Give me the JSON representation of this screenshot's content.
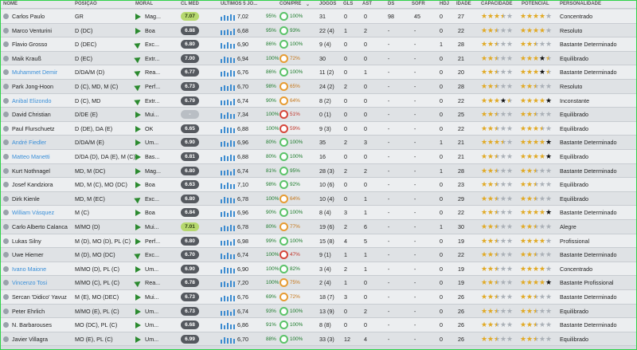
{
  "columns": {
    "nome": "NOME",
    "posicao": "POSIÇÃO",
    "moral": "MORAL",
    "clmed": "CL MED",
    "ultimos": "ÚLTIMOS 5 JO...",
    "conpre": "CON/PRE",
    "jogos": "JOGOS",
    "gls": "GLS",
    "ast": "AST",
    "ds": "DS",
    "sofr": "SOFR",
    "hdj": "HDJ",
    "idade": "IDADE",
    "capacidade": "CAPACIDADE",
    "potencial": "POTENCIAL",
    "personalidade": "PERSONALIDADE"
  },
  "rows": [
    {
      "name": "Carlos Paulo",
      "hl": false,
      "pos": "GR",
      "moral": "Mag...",
      "cl": "7.07",
      "clt": "hi",
      "avg": "7,02",
      "con": "95%",
      "pre": "100%",
      "ring": "ok",
      "jogos": "31",
      "gls": "0",
      "ast": "0",
      "ds": "98",
      "sofr": "45",
      "hdj": "0",
      "idade": "27",
      "cap": "fffhe",
      "pot": "ffffe",
      "pers": "Concentrado",
      "arrow": false
    },
    {
      "name": "Marco Venturini",
      "hl": false,
      "pos": "D (DC)",
      "moral": "Boa",
      "cl": "6.88",
      "clt": "",
      "avg": "6,68",
      "con": "95%",
      "pre": "93%",
      "ring": "ok",
      "jogos": "22 (4)",
      "gls": "1",
      "ast": "2",
      "ds": "-",
      "sofr": "-",
      "hdj": "0",
      "idade": "22",
      "cap": "ffhee",
      "pot": "ffffe",
      "pers": "Resoluto",
      "arrow": false
    },
    {
      "name": "Flavio Grosso",
      "hl": false,
      "pos": "D (DEC)",
      "moral": "Exc...",
      "cl": "6.80",
      "clt": "",
      "avg": "6,90",
      "con": "86%",
      "pre": "100%",
      "ring": "ok",
      "jogos": "9 (4)",
      "gls": "0",
      "ast": "0",
      "ds": "-",
      "sofr": "-",
      "hdj": "1",
      "idade": "28",
      "cap": "ffhee",
      "pot": "ffhee",
      "pers": "Bastante Determinado",
      "arrow": true
    },
    {
      "name": "Maik Krauß",
      "hl": false,
      "pos": "D (EC)",
      "moral": "Extr...",
      "cl": "7.00",
      "clt": "",
      "avg": "6,94",
      "con": "100%",
      "pre": "72%",
      "ring": "warn",
      "jogos": "30",
      "gls": "0",
      "ast": "0",
      "ds": "-",
      "sofr": "-",
      "hdj": "0",
      "idade": "21",
      "cap": "ffhee",
      "pot": "fffbh",
      "pers": "Equilibrado",
      "arrow": true
    },
    {
      "name": "Muhammet Demir",
      "hl": true,
      "pos": "D/DA/M (D)",
      "moral": "Rea...",
      "cl": "6.77",
      "clt": "",
      "avg": "6,76",
      "con": "86%",
      "pre": "100%",
      "ring": "ok",
      "jogos": "11 (2)",
      "gls": "0",
      "ast": "1",
      "ds": "-",
      "sofr": "-",
      "hdj": "0",
      "idade": "20",
      "cap": "ffhee",
      "pot": "fffbh",
      "pers": "Bastante Determinado",
      "arrow": true
    },
    {
      "name": "Park Jong-Hoon",
      "hl": false,
      "pos": "D (C), MD, M (C)",
      "moral": "Perf...",
      "cl": "6.73",
      "clt": "",
      "avg": "6,70",
      "con": "98%",
      "pre": "65%",
      "ring": "warn",
      "jogos": "24 (2)",
      "gls": "2",
      "ast": "0",
      "ds": "-",
      "sofr": "-",
      "hdj": "0",
      "idade": "28",
      "cap": "ffhee",
      "pot": "ffhee",
      "pers": "Resoluto",
      "arrow": true
    },
    {
      "name": "Anibal Elizondo",
      "hl": true,
      "pos": "D (C), MD",
      "moral": "Extr...",
      "cl": "6.79",
      "clt": "",
      "avg": "6,74",
      "con": "90%",
      "pre": "64%",
      "ring": "warn",
      "jogos": "8 (2)",
      "gls": "0",
      "ast": "0",
      "ds": "-",
      "sofr": "-",
      "hdj": "0",
      "idade": "22",
      "cap": "fffbh",
      "pot": "ffffb",
      "pers": "Inconstante",
      "arrow": true
    },
    {
      "name": "David Christian",
      "hl": false,
      "pos": "D/DE (E)",
      "moral": "Mui...",
      "cl": "-",
      "clt": "lo",
      "avg": "7,34",
      "con": "100%",
      "pre": "51%",
      "ring": "bad",
      "jogos": "0 (1)",
      "gls": "0",
      "ast": "0",
      "ds": "-",
      "sofr": "-",
      "hdj": "0",
      "idade": "25",
      "cap": "ffhee",
      "pot": "ffhee",
      "pers": "Equilibrado",
      "arrow": false
    },
    {
      "name": "Paul Flurschuetz",
      "hl": false,
      "pos": "D (DE), DA (E)",
      "moral": "OK",
      "cl": "6.65",
      "clt": "",
      "avg": "6,88",
      "con": "100%",
      "pre": "59%",
      "ring": "bad",
      "jogos": "9 (3)",
      "gls": "0",
      "ast": "0",
      "ds": "-",
      "sofr": "-",
      "hdj": "0",
      "idade": "22",
      "cap": "ffhee",
      "pot": "fffhe",
      "pers": "Equilibrado",
      "arrow": false
    },
    {
      "name": "André Fiedler",
      "hl": true,
      "pos": "D/DA/M (E)",
      "moral": "Um...",
      "cl": "6.90",
      "clt": "",
      "avg": "6,96",
      "con": "80%",
      "pre": "100%",
      "ring": "ok",
      "jogos": "35",
      "gls": "2",
      "ast": "3",
      "ds": "-",
      "sofr": "-",
      "hdj": "1",
      "idade": "21",
      "cap": "fffhe",
      "pot": "ffffb",
      "pers": "Bastante Determinado",
      "arrow": false
    },
    {
      "name": "Matteo Manetti",
      "hl": true,
      "pos": "D/DA (D), DA (E), M (C)",
      "moral": "Bas...",
      "cl": "6.81",
      "clt": "",
      "avg": "6,88",
      "con": "80%",
      "pre": "100%",
      "ring": "ok",
      "jogos": "16",
      "gls": "0",
      "ast": "0",
      "ds": "-",
      "sofr": "-",
      "hdj": "0",
      "idade": "21",
      "cap": "ffhee",
      "pot": "ffffb",
      "pers": "Equilibrado",
      "arrow": false
    },
    {
      "name": "Kurt Nothnagel",
      "hl": false,
      "pos": "MD, M (DC)",
      "moral": "Mag...",
      "cl": "6.80",
      "clt": "",
      "avg": "6,74",
      "con": "81%",
      "pre": "95%",
      "ring": "ok",
      "jogos": "28 (3)",
      "gls": "2",
      "ast": "2",
      "ds": "-",
      "sofr": "-",
      "hdj": "1",
      "idade": "28",
      "cap": "ffhee",
      "pot": "ffhee",
      "pers": "Bastante Determinado",
      "arrow": false
    },
    {
      "name": "Josef Kandziora",
      "hl": false,
      "pos": "MD, M (C), MO (DC)",
      "moral": "Boa",
      "cl": "6.63",
      "clt": "",
      "avg": "7,10",
      "con": "98%",
      "pre": "92%",
      "ring": "ok",
      "jogos": "10 (6)",
      "gls": "0",
      "ast": "0",
      "ds": "-",
      "sofr": "-",
      "hdj": "0",
      "idade": "23",
      "cap": "ffhee",
      "pot": "ffhee",
      "pers": "Equilibrado",
      "arrow": false
    },
    {
      "name": "Dirk Kienle",
      "hl": false,
      "pos": "MD, M (EC)",
      "moral": "Exc...",
      "cl": "6.80",
      "clt": "",
      "avg": "6,78",
      "con": "100%",
      "pre": "64%",
      "ring": "warn",
      "jogos": "10 (4)",
      "gls": "0",
      "ast": "1",
      "ds": "-",
      "sofr": "-",
      "hdj": "0",
      "idade": "29",
      "cap": "ffhee",
      "pot": "ffhee",
      "pers": "Equilibrado",
      "arrow": true
    },
    {
      "name": "William Vásquez",
      "hl": true,
      "pos": "M (C)",
      "moral": "Boa",
      "cl": "6.84",
      "clt": "",
      "avg": "6,96",
      "con": "90%",
      "pre": "100%",
      "ring": "ok",
      "jogos": "8 (4)",
      "gls": "3",
      "ast": "1",
      "ds": "-",
      "sofr": "-",
      "hdj": "0",
      "idade": "22",
      "cap": "ffhee",
      "pot": "ffffb",
      "pers": "Bastante Determinado",
      "arrow": false
    },
    {
      "name": "Carlo Alberto Calanca",
      "hl": false,
      "pos": "M/MO (D)",
      "moral": "Mui...",
      "cl": "7.01",
      "clt": "hi",
      "avg": "6,78",
      "con": "80%",
      "pre": "77%",
      "ring": "warn",
      "jogos": "19 (6)",
      "gls": "2",
      "ast": "6",
      "ds": "-",
      "sofr": "-",
      "hdj": "1",
      "idade": "30",
      "cap": "ffhee",
      "pot": "ffhee",
      "pers": "Alegre",
      "arrow": false
    },
    {
      "name": "Lukas Silny",
      "hl": false,
      "pos": "M (D), MO (D), PL (C)",
      "moral": "Perf...",
      "cl": "6.80",
      "clt": "",
      "avg": "6,98",
      "con": "99%",
      "pre": "100%",
      "ring": "ok",
      "jogos": "15 (8)",
      "gls": "4",
      "ast": "5",
      "ds": "-",
      "sofr": "-",
      "hdj": "0",
      "idade": "19",
      "cap": "ffhee",
      "pot": "ffffe",
      "pers": "Profissional",
      "arrow": false
    },
    {
      "name": "Uwe Hiemer",
      "hl": false,
      "pos": "M (D), MO (DC)",
      "moral": "Exc...",
      "cl": "6.70",
      "clt": "",
      "avg": "6,74",
      "con": "100%",
      "pre": "47%",
      "ring": "bad",
      "jogos": "9 (1)",
      "gls": "1",
      "ast": "1",
      "ds": "-",
      "sofr": "-",
      "hdj": "0",
      "idade": "22",
      "cap": "ffhee",
      "pot": "ffhee",
      "pers": "Bastante Determinado",
      "arrow": true
    },
    {
      "name": "Ivano Maione",
      "hl": true,
      "pos": "M/MO (D), PL (C)",
      "moral": "Um...",
      "cl": "6.90",
      "clt": "",
      "avg": "6,90",
      "con": "100%",
      "pre": "82%",
      "ring": "ok",
      "jogos": "3 (4)",
      "gls": "2",
      "ast": "1",
      "ds": "-",
      "sofr": "-",
      "hdj": "0",
      "idade": "19",
      "cap": "ffhee",
      "pot": "ffffe",
      "pers": "Concentrado",
      "arrow": false
    },
    {
      "name": "Vincenzo Tosi",
      "hl": true,
      "pos": "M/MO (C), PL (C)",
      "moral": "Rea...",
      "cl": "6.78",
      "clt": "",
      "avg": "7,20",
      "con": "100%",
      "pre": "75%",
      "ring": "warn",
      "jogos": "2 (4)",
      "gls": "1",
      "ast": "0",
      "ds": "-",
      "sofr": "-",
      "hdj": "0",
      "idade": "19",
      "cap": "ffhee",
      "pot": "ffffb",
      "pers": "Bastante Profissional",
      "arrow": true
    },
    {
      "name": "Sercan 'Didico' Yavuz",
      "hl": false,
      "pos": "M (E), MO (DEC)",
      "moral": "Mui...",
      "cl": "6.73",
      "clt": "",
      "avg": "6,76",
      "con": "69%",
      "pre": "72%",
      "ring": "warn",
      "jogos": "18 (7)",
      "gls": "3",
      "ast": "0",
      "ds": "-",
      "sofr": "-",
      "hdj": "0",
      "idade": "26",
      "cap": "ffhee",
      "pot": "ffhee",
      "pers": "Bastante Determinado",
      "arrow": false
    },
    {
      "name": "Peter Ehrlich",
      "hl": false,
      "pos": "M/MO (E), PL (C)",
      "moral": "Um...",
      "cl": "6.73",
      "clt": "",
      "avg": "6,74",
      "con": "93%",
      "pre": "100%",
      "ring": "ok",
      "jogos": "13 (9)",
      "gls": "0",
      "ast": "2",
      "ds": "-",
      "sofr": "-",
      "hdj": "0",
      "idade": "26",
      "cap": "ffhee",
      "pot": "ffhee",
      "pers": "Equilibrado",
      "arrow": false
    },
    {
      "name": "N. Barbarouses",
      "hl": false,
      "pos": "MO (DC), PL (C)",
      "moral": "Um...",
      "cl": "6.68",
      "clt": "",
      "avg": "6,86",
      "con": "91%",
      "pre": "100%",
      "ring": "ok",
      "jogos": "8 (8)",
      "gls": "0",
      "ast": "0",
      "ds": "-",
      "sofr": "-",
      "hdj": "0",
      "idade": "26",
      "cap": "ffhee",
      "pot": "ffhee",
      "pers": "Bastante Determinado",
      "arrow": false
    },
    {
      "name": "Javier Villagra",
      "hl": false,
      "pos": "MO (E), PL (C)",
      "moral": "Um...",
      "cl": "6.99",
      "clt": "",
      "avg": "6,70",
      "con": "88%",
      "pre": "100%",
      "ring": "ok",
      "jogos": "33 (3)",
      "gls": "12",
      "ast": "4",
      "ds": "-",
      "sofr": "-",
      "hdj": "0",
      "idade": "26",
      "cap": "ffhee",
      "pot": "ffhee",
      "pers": "Equilibrado",
      "arrow": false
    }
  ]
}
